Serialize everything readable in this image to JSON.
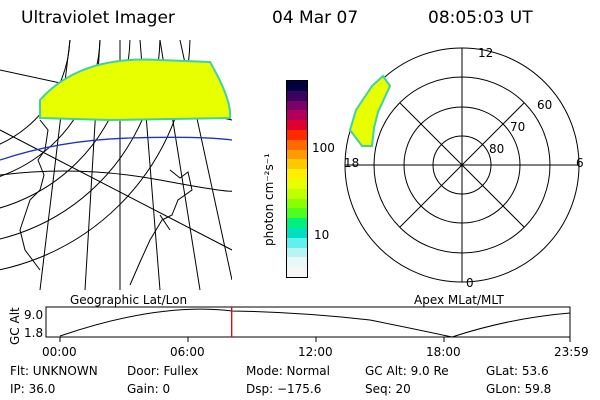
{
  "header": {
    "title": "Ultraviolet Imager",
    "date": "04 Mar 07",
    "time": "08:05:03 UT"
  },
  "colorbar": {
    "unit_label": "photon cm⁻²s⁻¹",
    "ticks": [
      "100",
      "10"
    ],
    "colors": [
      "#000040",
      "#3a0060",
      "#7a006a",
      "#b0005a",
      "#e00030",
      "#ff2a00",
      "#ff6a00",
      "#ff9a00",
      "#ffc800",
      "#fff000",
      "#e8ff00",
      "#bfff00",
      "#8aff00",
      "#4cff20",
      "#00f080",
      "#00e0c0",
      "#60f0f0",
      "#b8f4f4",
      "#e8f8f8",
      "#f6f6f6"
    ]
  },
  "panels": {
    "geo_label": "Geographic Lat/Lon",
    "apex_label": "Apex  MLat/MLT"
  },
  "polar": {
    "mlt_labels": [
      "12",
      "18",
      "6",
      "0"
    ],
    "lat_labels": [
      "60",
      "70",
      "80"
    ]
  },
  "altplot": {
    "ylabel": "GC Alt",
    "yticks": [
      "9.0",
      "1.8"
    ],
    "xticks": [
      "00:00",
      "06:00",
      "12:00",
      "18:00",
      "23:59"
    ],
    "current_time_hours": 8.08
  },
  "footer": {
    "flt": "Flt: UNKNOWN",
    "door": "Door: Fullex",
    "mode": "Mode: Normal",
    "gcalt": "GC Alt: 9.0 Re",
    "glat": "GLat:  53.6",
    "ip": "IP: 36.0",
    "gain": "Gain:   0",
    "dsp": "Dsp: −175.6",
    "seq": "Seq: 20",
    "glon": "GLon:  59.8"
  },
  "accent": {
    "aurora_fill": "#e8ff00",
    "aurora_edge": "#3fd2a0",
    "time_marker": "#dd0000",
    "mag_line": "#2030c0"
  }
}
